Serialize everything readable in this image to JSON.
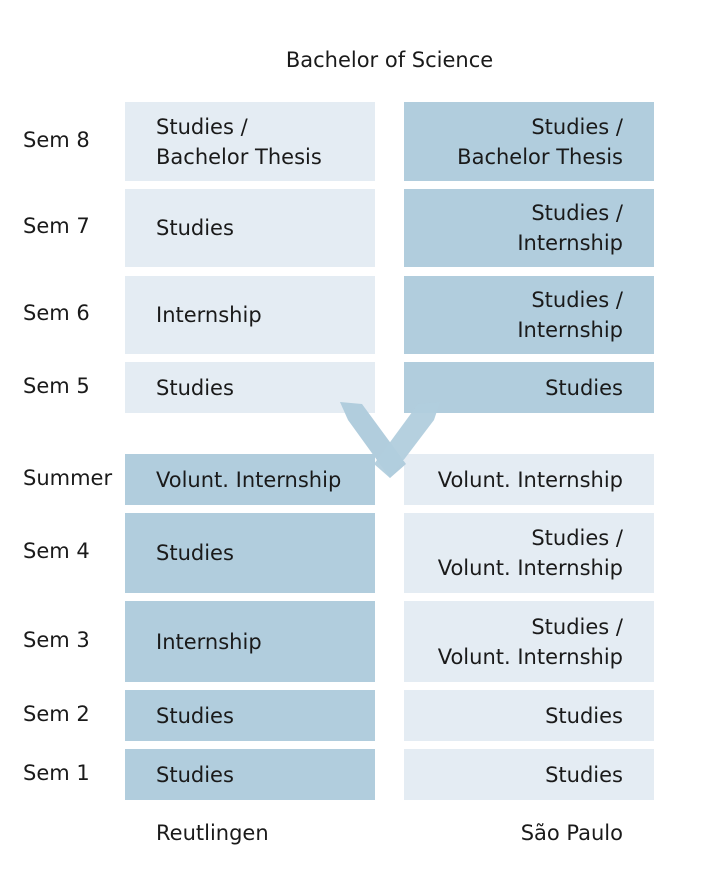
{
  "title": "Bachelor of Science",
  "semesters": {
    "sem8": "Sem 8",
    "sem7": "Sem 7",
    "sem6": "Sem 6",
    "sem5": "Sem 5",
    "summer": "Summer",
    "sem4": "Sem 4",
    "sem3": "Sem 3",
    "sem2": "Sem 2",
    "sem1": "Sem 1"
  },
  "reutlingen": {
    "sem8": [
      "Studies /",
      "Bachelor Thesis"
    ],
    "sem7": [
      "Studies"
    ],
    "sem6": [
      "Internship"
    ],
    "sem5": [
      "Studies"
    ],
    "summer": [
      "Volunt. Internship"
    ],
    "sem4": [
      "Studies"
    ],
    "sem3": [
      "Internship"
    ],
    "sem2": [
      "Studies"
    ],
    "sem1": [
      "Studies"
    ]
  },
  "saopaulo": {
    "sem8": [
      "Studies /",
      "Bachelor Thesis"
    ],
    "sem7": [
      "Studies /",
      "Internship"
    ],
    "sem6": [
      "Studies /",
      "Internship"
    ],
    "sem5": [
      "Studies"
    ],
    "summer": [
      "Volunt. Internship"
    ],
    "sem4": [
      "Studies /",
      "Volunt. Internship"
    ],
    "sem3": [
      "Studies /",
      "Volunt. Internship"
    ],
    "sem2": [
      "Studies"
    ],
    "sem1": [
      "Studies"
    ]
  },
  "footer": {
    "left": "Reutlingen",
    "right": "São Paulo"
  },
  "colors": {
    "light": "#e4ecf3",
    "dark": "#b1cddd"
  }
}
